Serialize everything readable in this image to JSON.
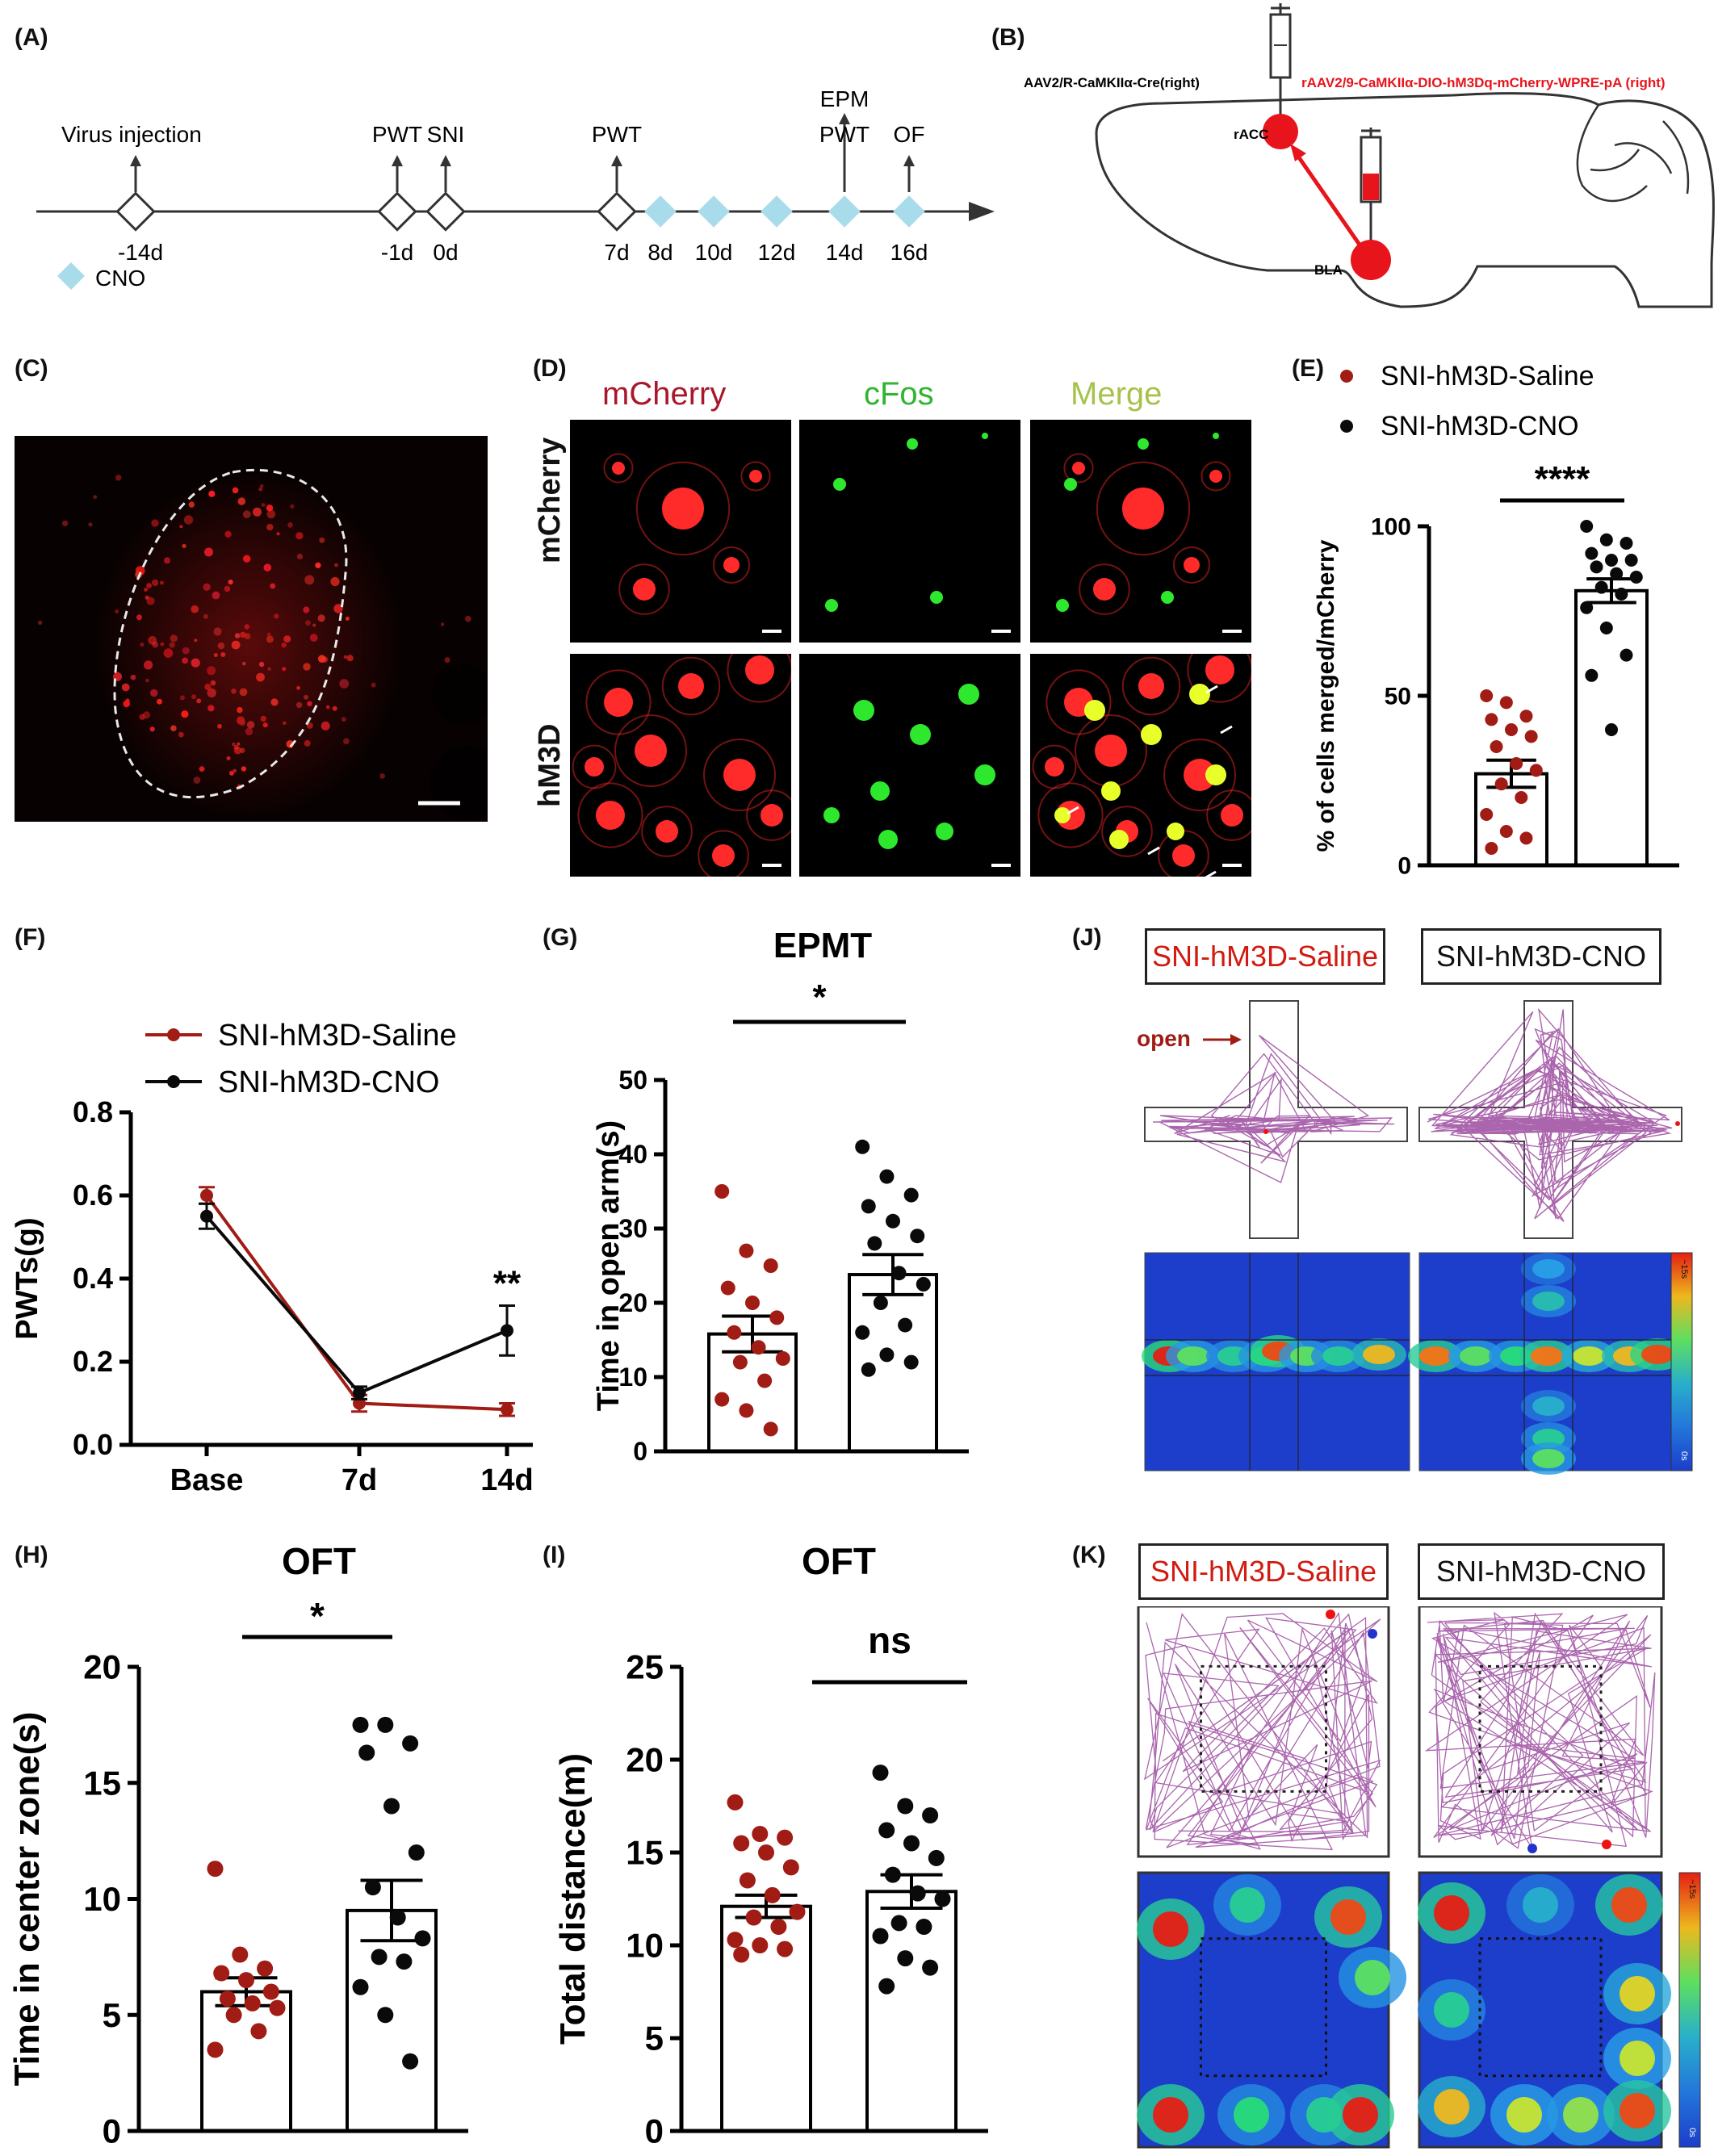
{
  "panels": {
    "A": "(A)",
    "B": "(B)",
    "C": "(C)",
    "D": "(D)",
    "E": "(E)",
    "F": "(F)",
    "G": "(G)",
    "H": "(H)",
    "I": "(I)",
    "J": "(J)",
    "K": "(K)"
  },
  "timeline": {
    "events": [
      {
        "top": "Virus injection",
        "day": "-14d"
      },
      {
        "top": "PWT",
        "day": "-1d"
      },
      {
        "top": "SNI",
        "day": "0d"
      },
      {
        "top": "PWT",
        "day": "7d"
      },
      {
        "top": "",
        "day": "8d"
      },
      {
        "top": "",
        "day": "10d"
      },
      {
        "top": "",
        "day": "12d"
      },
      {
        "top": "EPM",
        "top2": "PWT",
        "day": "14d"
      },
      {
        "top": "OF",
        "day": "16d"
      }
    ],
    "cno_legend": "CNO",
    "colors": {
      "cno": "#a9dcea"
    }
  },
  "brain": {
    "label_left": "AAV2/R-CaMKIIα-Cre(right)",
    "label_right": "rAAV2/9-CaMKIIα-DIO-hM3Dq-mCherry-WPRE-pA (right)",
    "site1": "rACC",
    "site2": "BLA",
    "colors": {
      "virus": "#e8141c"
    }
  },
  "micrograph_d": {
    "col_headers": [
      "mCherry",
      "cFos",
      "Merge"
    ],
    "row_labels": [
      "mCherry",
      "hM3D"
    ],
    "colors": {
      "mcherry": "#a8182a",
      "cfos": "#2fb52f",
      "merge": "#a6c24a"
    }
  },
  "legend_groups": {
    "saline": "SNI-hM3D-Saline",
    "cno": "SNI-hM3D-CNO",
    "colors": {
      "saline": "#a01c14",
      "cno": "#0a0a0a"
    }
  },
  "chart_data": [
    {
      "id": "E",
      "type": "bar",
      "title": "",
      "ylabel": "% of cells merged/mCherry",
      "ylim": [
        0,
        100
      ],
      "yticks": [
        0,
        50,
        100
      ],
      "categories": [
        "SNI-hM3D-Saline",
        "SNI-hM3D-CNO"
      ],
      "series": [
        {
          "name": "SNI-hM3D-Saline",
          "mean": 27,
          "sem": 4,
          "points": [
            50,
            48,
            44,
            43,
            40,
            38,
            35,
            30,
            28,
            24,
            20,
            15,
            10,
            8,
            5
          ]
        },
        {
          "name": "SNI-hM3D-CNO",
          "mean": 81,
          "sem": 3.5,
          "points": [
            100,
            96,
            95,
            92,
            90,
            90,
            88,
            86,
            85,
            82,
            80,
            76,
            70,
            62,
            56,
            40
          ]
        }
      ],
      "significance": "****"
    },
    {
      "id": "F",
      "type": "line",
      "title": "",
      "ylabel": "PWTs(g)",
      "ylim": [
        0,
        0.8
      ],
      "yticks": [
        "0.0",
        "0.2",
        "0.4",
        "0.6",
        "0.8"
      ],
      "categories": [
        "Base",
        "7d",
        "14d"
      ],
      "series": [
        {
          "name": "SNI-hM3D-Saline",
          "values": [
            0.6,
            0.1,
            0.085
          ],
          "sem": [
            0.02,
            0.02,
            0.015
          ]
        },
        {
          "name": "SNI-hM3D-CNO",
          "values": [
            0.55,
            0.125,
            0.275
          ],
          "sem": [
            0.03,
            0.015,
            0.06
          ]
        }
      ],
      "significance": "**"
    },
    {
      "id": "G",
      "type": "bar",
      "title": "EPMT",
      "ylabel": "Time in open arm(s)",
      "ylim": [
        0,
        50
      ],
      "yticks": [
        0,
        10,
        20,
        30,
        40,
        50
      ],
      "categories": [
        "SNI-hM3D-Saline",
        "SNI-hM3D-CNO"
      ],
      "series": [
        {
          "name": "SNI-hM3D-Saline",
          "mean": 15.8,
          "sem": 2.4,
          "points": [
            35,
            27,
            25,
            22,
            20,
            18,
            16,
            14,
            12.5,
            12,
            9.5,
            7,
            5.5,
            3
          ]
        },
        {
          "name": "SNI-hM3D-CNO",
          "mean": 23.8,
          "sem": 2.7,
          "points": [
            41,
            37,
            34.5,
            33,
            31,
            29,
            28,
            24,
            22.5,
            20,
            17,
            16,
            13,
            12,
            11
          ]
        }
      ],
      "significance": "*"
    },
    {
      "id": "H",
      "type": "bar",
      "title": "OFT",
      "ylabel": "Time in center zone(s)",
      "ylim": [
        0,
        20
      ],
      "yticks": [
        0,
        5,
        10,
        15,
        20
      ],
      "categories": [
        "SNI-hM3D-Saline",
        "SNI-hM3D-CNO"
      ],
      "series": [
        {
          "name": "SNI-hM3D-Saline",
          "mean": 6,
          "sem": 0.6,
          "points": [
            11.3,
            7.6,
            7,
            6.8,
            6.5,
            6,
            5.7,
            5.5,
            5.3,
            5,
            4.3,
            3.5
          ]
        },
        {
          "name": "SNI-hM3D-CNO",
          "mean": 9.5,
          "sem": 1.3,
          "points": [
            17.5,
            17.5,
            16.7,
            16.3,
            14,
            12,
            10.5,
            9.2,
            8.3,
            7.5,
            7.3,
            6.2,
            5,
            3
          ]
        }
      ],
      "significance": "*"
    },
    {
      "id": "I",
      "type": "bar",
      "title": "OFT",
      "ylabel": "Total distance(m)",
      "ylim": [
        0,
        25
      ],
      "yticks": [
        0,
        5,
        10,
        15,
        20,
        25
      ],
      "categories": [
        "SNI-hM3D-Saline",
        "SNI-hM3D-CNO"
      ],
      "series": [
        {
          "name": "SNI-hM3D-Saline",
          "mean": 12.1,
          "sem": 0.6,
          "points": [
            17.7,
            16,
            15.8,
            15.5,
            15,
            14.2,
            13.5,
            12.7,
            11.8,
            11.5,
            11,
            10.3,
            10,
            9.8,
            9.5
          ]
        },
        {
          "name": "SNI-hM3D-CNO",
          "mean": 12.9,
          "sem": 0.9,
          "points": [
            19.3,
            17.5,
            17,
            16.2,
            15.5,
            14.7,
            13.8,
            12.8,
            12.5,
            11.2,
            11,
            10.5,
            9.3,
            8.8,
            7.8
          ]
        }
      ],
      "significance": "ns"
    }
  ],
  "track_j": {
    "labels": [
      "SNI-hM3D-Saline",
      "SNI-hM3D-CNO"
    ],
    "open_label": "open",
    "colorbar_top": "~15s",
    "colorbar_bottom": "0s",
    "colors": {
      "trace": "#9b4a9f",
      "heat_low": "#1c3ecb"
    }
  },
  "track_k": {
    "labels": [
      "SNI-hM3D-Saline",
      "SNI-hM3D-CNO"
    ],
    "colorbar_top": "~15s",
    "colorbar_bottom": "0s"
  }
}
